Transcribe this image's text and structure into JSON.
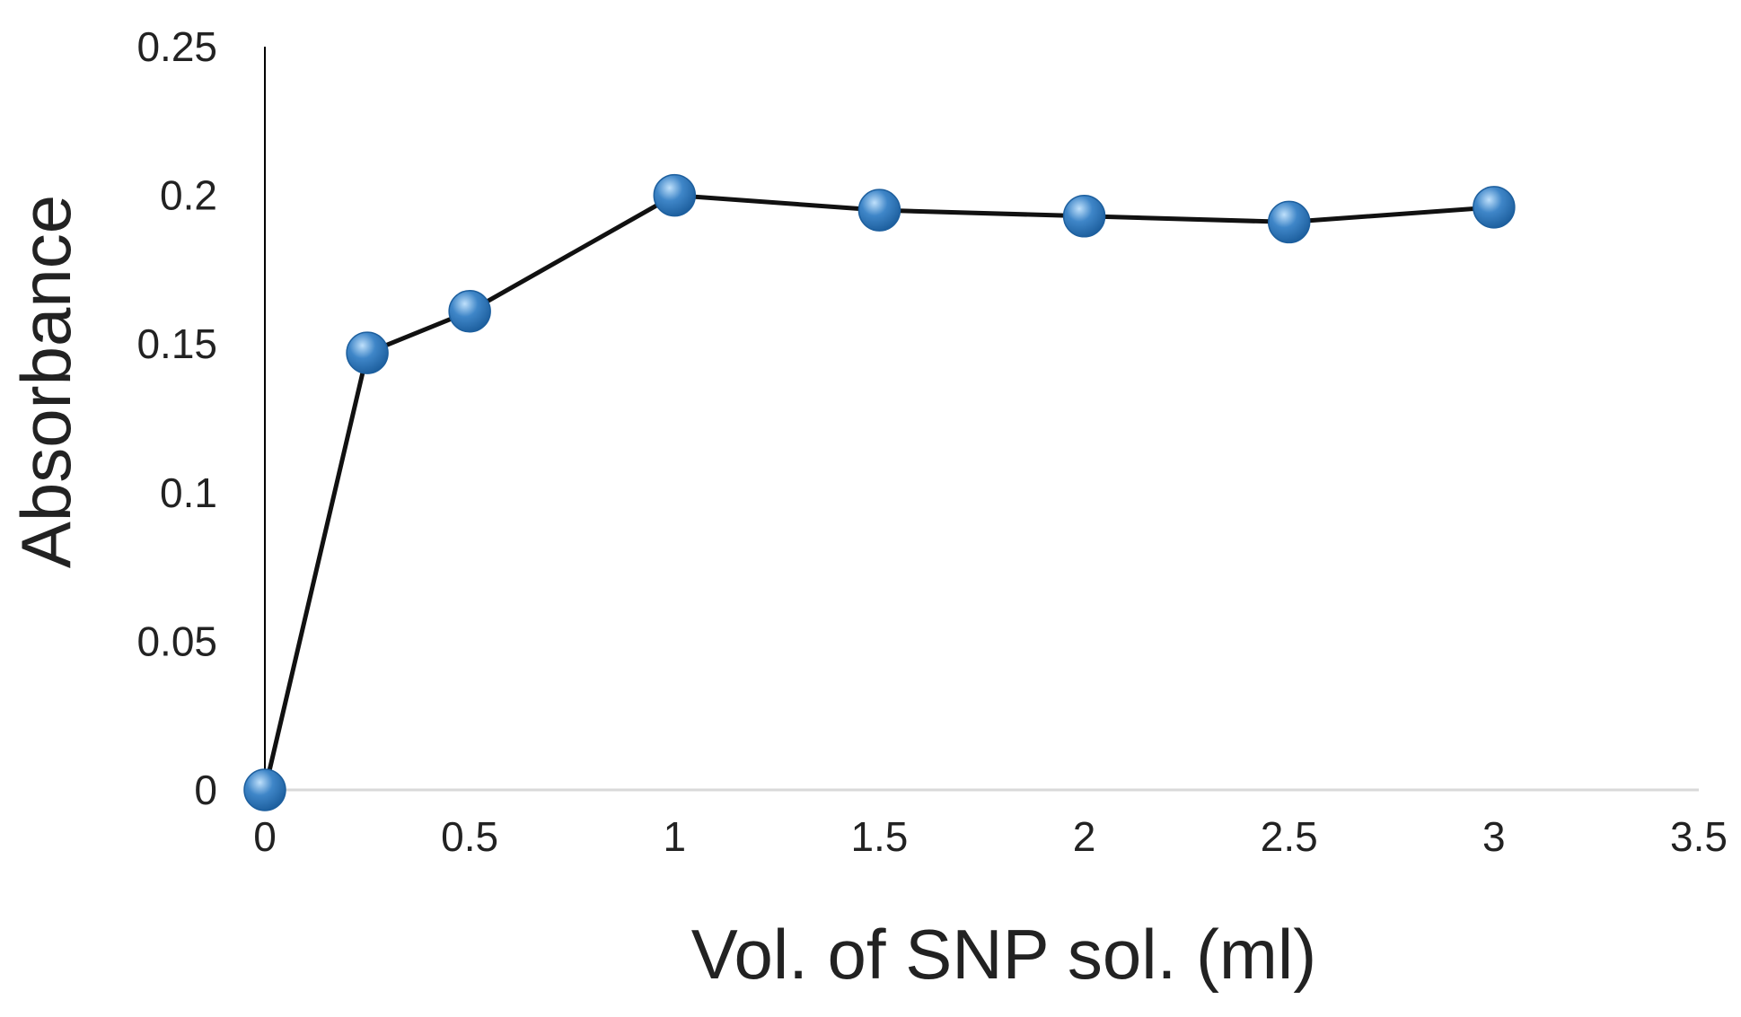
{
  "chart_data": {
    "type": "line",
    "title": "",
    "xlabel": "Vol. of SNP sol. (ml)",
    "ylabel": "Absorbance",
    "xlim": [
      0,
      3.5
    ],
    "ylim": [
      0,
      0.25
    ],
    "x_ticks": [
      "0",
      "0.5",
      "1",
      "1.5",
      "2",
      "2.5",
      "3",
      "3.5"
    ],
    "y_ticks": [
      "0",
      "0.05",
      "0.1",
      "0.15",
      "0.2",
      "0.25"
    ],
    "x_tick_values": [
      0,
      0.5,
      1,
      1.5,
      2,
      2.5,
      3,
      3.5
    ],
    "y_tick_values": [
      0,
      0.05,
      0.1,
      0.15,
      0.2,
      0.25
    ],
    "grid": false,
    "legend": "none",
    "series": [
      {
        "x": [
          0,
          0.25,
          0.5,
          1,
          1.5,
          2,
          2.5,
          3
        ],
        "values": [
          0,
          0.147,
          0.161,
          0.2,
          0.195,
          0.193,
          0.191,
          0.196
        ]
      }
    ],
    "colors": {
      "line": "#111111",
      "marker": "#3f86c8",
      "marker_highlight": "#bfe0fb",
      "marker_shade": "#1d5f9e",
      "axis": "#000000",
      "baseline": "#d9d9d9"
    }
  }
}
